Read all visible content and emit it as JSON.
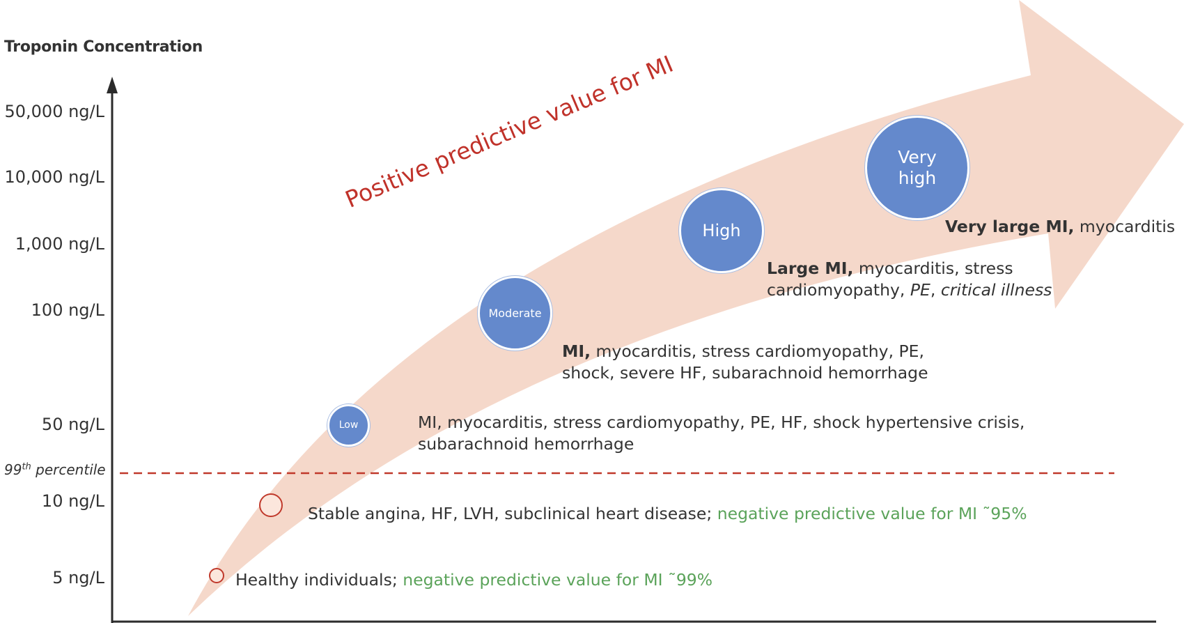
{
  "y_axis": {
    "title": "Troponin Concentration",
    "ticks": [
      "50,000 ng/L",
      "10,000 ng/L",
      "1,000 ng/L",
      "100 ng/L",
      "50 ng/L",
      "10 ng/L",
      "5 ng/L"
    ],
    "threshold_label": {
      "number": "99",
      "suffix": "th",
      "text": " percentile"
    }
  },
  "arrow_label": "Positive predictive value for MI",
  "levels": {
    "low": "Low",
    "moderate": "Moderate",
    "high": "High",
    "very_high_1": "Very",
    "very_high_2": "high"
  },
  "descriptions": {
    "very_high": {
      "bold": "Very large MI,",
      "rest": " myocarditis"
    },
    "high": {
      "bold": "Large MI,",
      "line1": " myocarditis, stress",
      "line2_a": "cardiomyopathy, ",
      "line2_pe": "PE",
      "line2_sep": ", ",
      "line2_ci": "critical illness"
    },
    "moderate": {
      "bold": "MI,",
      "line1": " myocarditis, stress cardiomyopathy, PE,",
      "line2": "shock, severe HF, subarachnoid hemorrhage"
    },
    "low": {
      "line1": "MI, myocarditis, stress cardiomyopathy, PE, HF, shock hypertensive crisis,",
      "line2": "subarachnoid hemorrhage"
    },
    "ten": {
      "text": "Stable angina, HF, LVH, subclinical heart disease; ",
      "green": "negative predictive value for MI ˜95%"
    },
    "five": {
      "text": "Healthy individuals; ",
      "green": "negative predictive value for MI ˜99%"
    }
  },
  "colors": {
    "arrow_fill": "#f5d8ca",
    "level_circle": "#6489cc",
    "threshold_line": "#c0392b",
    "ppv_text": "#c0322a",
    "npv_text": "#5ba35a"
  }
}
